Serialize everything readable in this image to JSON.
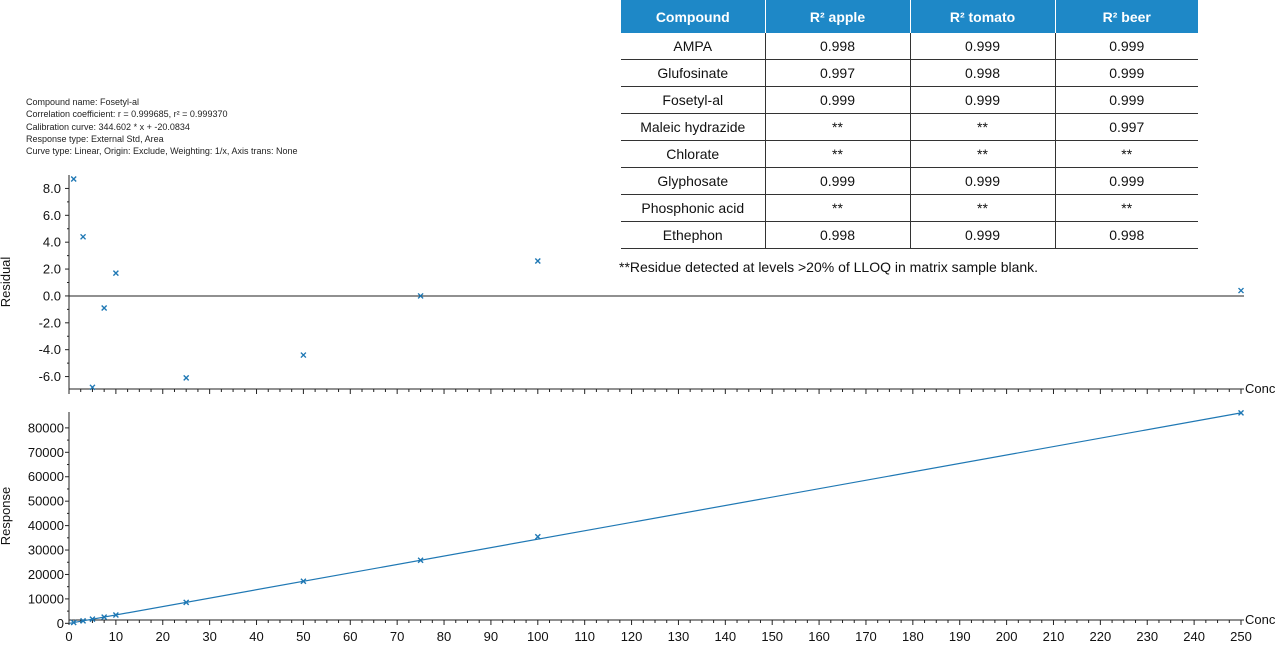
{
  "info": {
    "compound_name": "Compound name: Fosetyl-al",
    "correlation": "Correlation coefficient: r = 0.999685, r² = 0.999370",
    "calibration": "Calibration curve: 344.602 * x + -20.0834",
    "response_type": "Response type: External Std, Area",
    "curve_type": "Curve type: Linear, Origin: Exclude, Weighting: 1/x, Axis trans: None"
  },
  "table": {
    "headers": [
      "Compound",
      "R² apple",
      "R² tomato",
      "R² beer"
    ],
    "rows": [
      [
        "AMPA",
        "0.998",
        "0.999",
        "0.999"
      ],
      [
        "Glufosinate",
        "0.997",
        "0.998",
        "0.999"
      ],
      [
        "Fosetyl-al",
        "0.999",
        "0.999",
        "0.999"
      ],
      [
        "Maleic hydrazide",
        "**",
        "**",
        "0.997"
      ],
      [
        "Chlorate",
        "**",
        "**",
        "**"
      ],
      [
        "Glyphosate",
        "0.999",
        "0.999",
        "0.999"
      ],
      [
        "Phosphonic acid",
        "**",
        "**",
        "**"
      ],
      [
        "Ethephon",
        "0.998",
        "0.999",
        "0.998"
      ]
    ],
    "header_color": "#1e88c7",
    "footnote": "**Residue detected at levels >20% of LLOQ in matrix sample blank."
  },
  "chart_data": [
    {
      "type": "scatter",
      "ylabel": "Residual",
      "xlabel": "Conc",
      "xlim": [
        0,
        250
      ],
      "ylim": [
        -7,
        9
      ],
      "yticks": [
        "8.0",
        "6.0",
        "4.0",
        "2.0",
        "0.0",
        "-2.0",
        "-4.0",
        "-6.0"
      ],
      "ytick_values": [
        8,
        6,
        4,
        2,
        0,
        -2,
        -4,
        -6
      ],
      "series": [
        {
          "x": [
            1,
            3,
            5,
            7.5,
            10,
            25,
            50,
            75,
            100,
            250
          ],
          "y": [
            8.7,
            4.4,
            -6.8,
            -0.9,
            1.7,
            -6.1,
            -4.4,
            0.0,
            2.6,
            0.4
          ]
        }
      ],
      "zero_line": true,
      "color": "#1f78b4"
    },
    {
      "type": "scatter",
      "ylabel": "Response",
      "xlabel": "Conc",
      "xlim": [
        0,
        250
      ],
      "ylim": [
        -1500,
        86500
      ],
      "yticks": [
        "80000",
        "70000",
        "60000",
        "50000",
        "40000",
        "30000",
        "20000",
        "10000",
        "0"
      ],
      "ytick_values": [
        80000,
        70000,
        60000,
        50000,
        40000,
        30000,
        20000,
        10000,
        0
      ],
      "xticks": [
        "0",
        "10",
        "20",
        "30",
        "40",
        "50",
        "60",
        "70",
        "80",
        "90",
        "100",
        "110",
        "120",
        "130",
        "140",
        "150",
        "160",
        "170",
        "180",
        "190",
        "200",
        "210",
        "220",
        "230",
        "240",
        "250"
      ],
      "series": [
        {
          "x": [
            1,
            3,
            5,
            7.5,
            10,
            25,
            50,
            75,
            100,
            250
          ],
          "y": [
            325,
            1014,
            1703,
            2565,
            3428,
            8595,
            17210,
            25825,
            35440,
            86130
          ]
        }
      ],
      "fit_line": {
        "slope": 344.602,
        "intercept": -20.0834
      },
      "color": "#1f78b4"
    }
  ]
}
